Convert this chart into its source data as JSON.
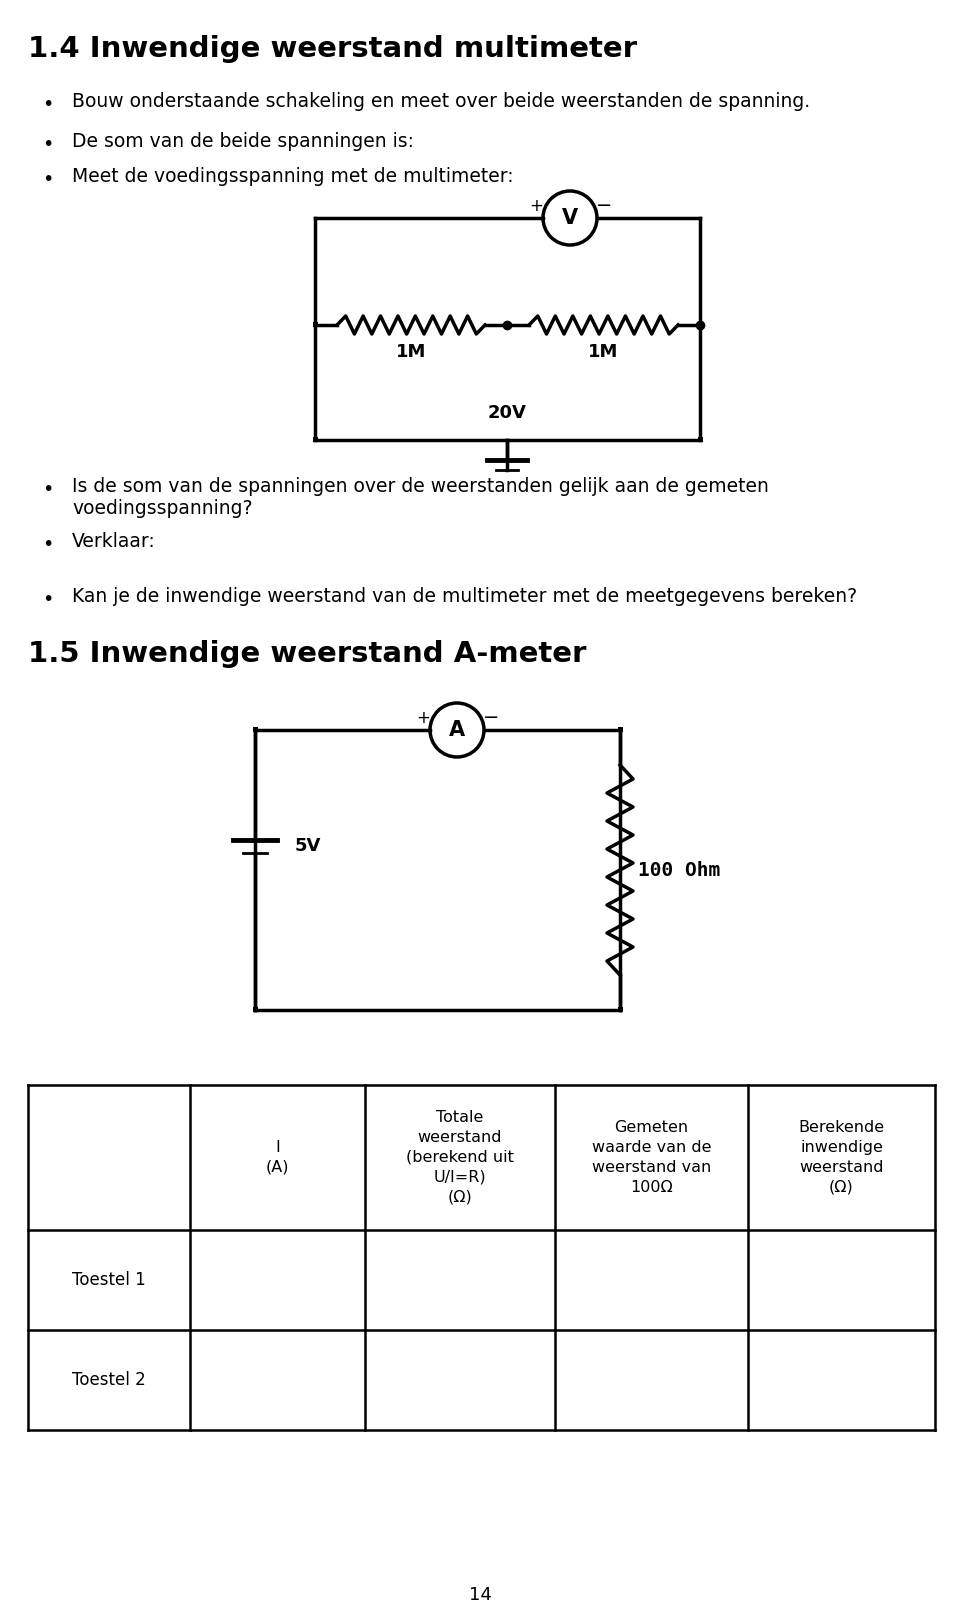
{
  "title1": "1.4 Inwendige weerstand multimeter",
  "title2": "1.5 Inwendige weerstand A-meter",
  "bullet1": "Bouw onderstaande schakeling en meet over beide weerstanden de spanning.",
  "bullet2": "De som van de beide spanningen is:",
  "bullet3": "Meet de voedingsspanning met de multimeter:",
  "bullet4": "Is de som van de spanningen over de weerstanden gelijk aan de gemeten\nvoedingsspanning?",
  "bullet5": "Verklaar:",
  "bullet6": "Kan je de inwendige weerstand van de multimeter met de meetgegevens bereken?",
  "page_number": "14",
  "bg_color": "#ffffff",
  "text_color": "#000000",
  "circuit1_voltage": "20V",
  "circuit1_r1": "1M",
  "circuit1_r2": "1M",
  "circuit2_voltage": "5V",
  "circuit2_r": "100 Ohm",
  "table_col1": "I\n(A)",
  "table_col2": "Totale\nweerstand\n(berekend uit\nU/I=R)\n(Ω)",
  "table_col3": "Gemeten\nwaarde van de\nweerstand van\n100Ω",
  "table_col4": "Berekende\ninwendige\nweerstand\n(Ω)",
  "table_row1": "Toestel 1",
  "table_row2": "Toestel 2"
}
